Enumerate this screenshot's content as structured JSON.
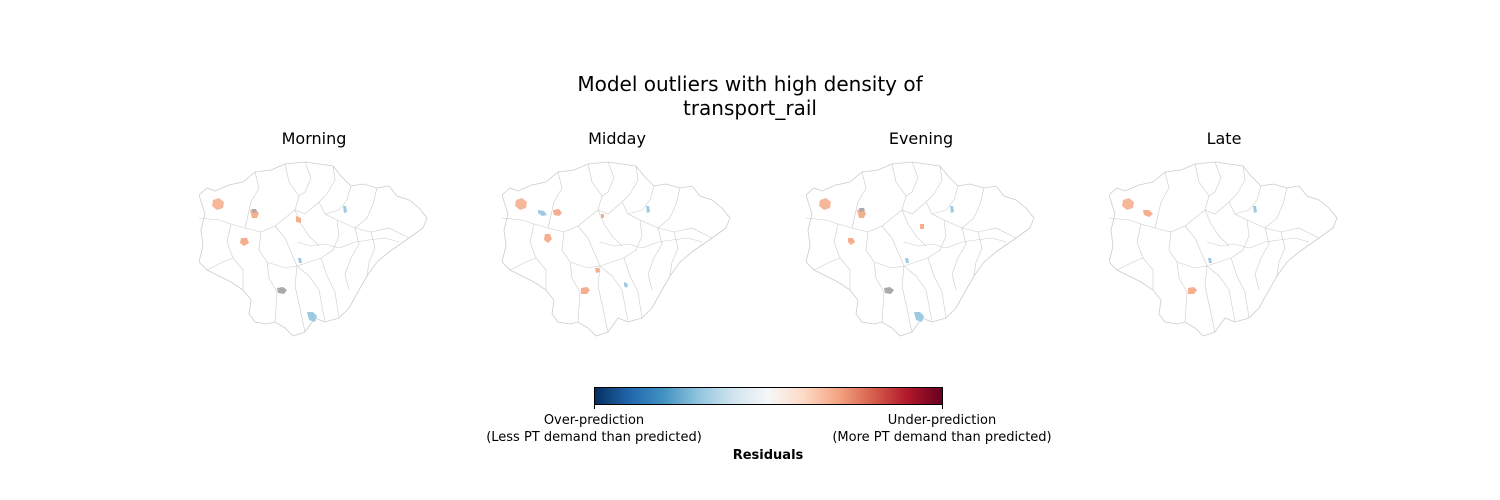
{
  "title_line1": "Model outliers with high density of",
  "title_line2": "transport_rail",
  "panels": [
    {
      "label": "Morning"
    },
    {
      "label": "Midday"
    },
    {
      "label": "Evening"
    },
    {
      "label": "Late"
    }
  ],
  "colorbar": {
    "left_label_line1": "Over-prediction",
    "left_label_line2": "(Less PT demand than predicted)",
    "right_label_line1": "Under-prediction",
    "right_label_line2": "(More PT demand than predicted)",
    "title": "Residuals",
    "colormap": "RdBu_r"
  },
  "colors": {
    "boundary": "#cccccc",
    "over_prediction": "#9ecae1",
    "under_prediction": "#f4a582",
    "neutral": "#aaaaaa"
  }
}
